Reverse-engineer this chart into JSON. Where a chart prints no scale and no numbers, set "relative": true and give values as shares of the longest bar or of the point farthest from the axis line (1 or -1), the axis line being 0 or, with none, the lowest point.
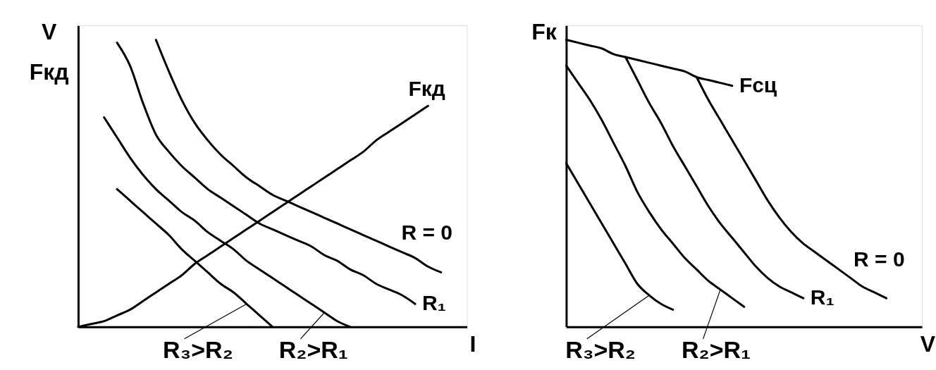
{
  "chart_data": [
    {
      "type": "line",
      "xlabel": "I",
      "ylabel": "V\nFкд",
      "relative": true,
      "legend": "bottom",
      "categories": [
        null,
        null,
        null,
        null,
        null,
        null,
        null,
        null,
        null,
        null,
        null,
        null,
        null,
        null,
        null,
        null,
        null,
        null,
        null,
        null,
        null,
        null,
        null,
        null,
        null,
        null,
        null,
        null,
        null,
        null,
        null
      ],
      "series": [
        {
          "name": "Fкд",
          "color": "#000000",
          "values": [
            0,
            0.01,
            0.02,
            0.04,
            0.06,
            0.09,
            0.12,
            0.15,
            0.18,
            0.22,
            0.25,
            0.28,
            0.31,
            0.34,
            0.37,
            0.4,
            0.43,
            0.46,
            0.49,
            0.52,
            0.55,
            0.58,
            0.61,
            0.65,
            0.68,
            0.71,
            0.74,
            0.77,
            null,
            null,
            null
          ]
        },
        {
          "name": "R = 0",
          "color": "#000000",
          "values": [
            null,
            null,
            null,
            null,
            null,
            null,
            1.0,
            0.89,
            0.79,
            0.71,
            0.65,
            0.6,
            0.56,
            0.52,
            0.49,
            0.46,
            0.44,
            0.42,
            0.4,
            0.38,
            0.36,
            0.34,
            0.32,
            0.3,
            0.28,
            0.26,
            0.24,
            0.21,
            0.19,
            null,
            null
          ]
        },
        {
          "name": "R₁",
          "color": "#000000",
          "values": [
            null,
            null,
            null,
            0.99,
            0.91,
            0.78,
            0.67,
            0.61,
            0.56,
            0.52,
            0.48,
            0.45,
            0.42,
            0.39,
            0.36,
            0.34,
            0.32,
            0.3,
            0.28,
            0.25,
            0.23,
            0.2,
            0.18,
            0.15,
            0.13,
            0.11,
            0.08,
            null,
            null,
            null,
            null
          ]
        },
        {
          "name": "R₂>R₁",
          "color": "#000000",
          "values": [
            null,
            null,
            0.73,
            0.66,
            0.59,
            0.53,
            0.48,
            0.44,
            0.4,
            0.37,
            0.33,
            0.3,
            0.27,
            0.23,
            0.2,
            0.17,
            0.14,
            0.11,
            0.08,
            0.05,
            0.02,
            0,
            null,
            null,
            null,
            null,
            null,
            null,
            null,
            null,
            null
          ]
        },
        {
          "name": "R₃>R₂",
          "color": "#000000",
          "values": [
            null,
            null,
            null,
            0.48,
            0.44,
            0.4,
            0.36,
            0.32,
            0.27,
            0.23,
            0.19,
            0.15,
            0.12,
            0.08,
            0.04,
            0,
            null,
            null,
            null,
            null,
            null,
            null,
            null,
            null,
            null,
            null,
            null,
            null,
            null,
            null,
            null
          ]
        }
      ]
    },
    {
      "type": "line",
      "xlabel": "V",
      "ylabel": "Fк",
      "relative": true,
      "legend": "bottom",
      "categories": [
        null,
        null,
        null,
        null,
        null,
        null,
        null,
        null,
        null,
        null,
        null,
        null,
        null,
        null,
        null,
        null,
        null,
        null,
        null,
        null,
        null,
        null,
        null,
        null,
        null,
        null,
        null,
        null,
        null,
        null,
        null
      ],
      "series": [
        {
          "name": "Fсц",
          "color": "#000000",
          "values": [
            1.0,
            0.99,
            0.98,
            0.97,
            0.95,
            0.94,
            0.93,
            0.92,
            0.91,
            0.9,
            0.89,
            0.87,
            0.86,
            0.85,
            0.84,
            null,
            null,
            null,
            null,
            null,
            null,
            null,
            null,
            null,
            null,
            null,
            null,
            null,
            null,
            null,
            null
          ]
        },
        {
          "name": "R = 0",
          "color": "#000000",
          "values": [
            null,
            null,
            null,
            null,
            null,
            null,
            null,
            null,
            null,
            null,
            null,
            0.87,
            0.79,
            0.72,
            0.65,
            0.58,
            0.51,
            0.44,
            0.38,
            0.33,
            0.29,
            0.26,
            0.23,
            0.2,
            0.17,
            0.14,
            0.12,
            0.1,
            null,
            null,
            null
          ]
        },
        {
          "name": "R₁",
          "color": "#000000",
          "values": [
            null,
            null,
            null,
            null,
            null,
            0.94,
            0.86,
            0.78,
            0.71,
            0.63,
            0.56,
            0.49,
            0.42,
            0.36,
            0.31,
            0.26,
            0.21,
            0.17,
            0.14,
            0.12,
            0.1,
            null,
            null,
            null,
            null,
            null,
            null,
            null,
            null,
            null,
            null
          ]
        },
        {
          "name": "R₂>R₁",
          "color": "#000000",
          "values": [
            0.91,
            0.85,
            0.79,
            0.72,
            0.64,
            0.56,
            0.47,
            0.4,
            0.34,
            0.29,
            0.24,
            0.2,
            0.16,
            0.13,
            0.1,
            0.07,
            null,
            null,
            null,
            null,
            null,
            null,
            null,
            null,
            null,
            null,
            null,
            null,
            null,
            null,
            null
          ]
        },
        {
          "name": "R₃>R₂",
          "color": "#000000",
          "values": [
            0.57,
            0.5,
            0.43,
            0.36,
            0.29,
            0.22,
            0.15,
            0.11,
            0.08,
            0.06,
            null,
            null,
            null,
            null,
            null,
            null,
            null,
            null,
            null,
            null,
            null,
            null,
            null,
            null,
            null,
            null,
            null,
            null,
            null,
            null,
            null
          ]
        }
      ]
    }
  ]
}
